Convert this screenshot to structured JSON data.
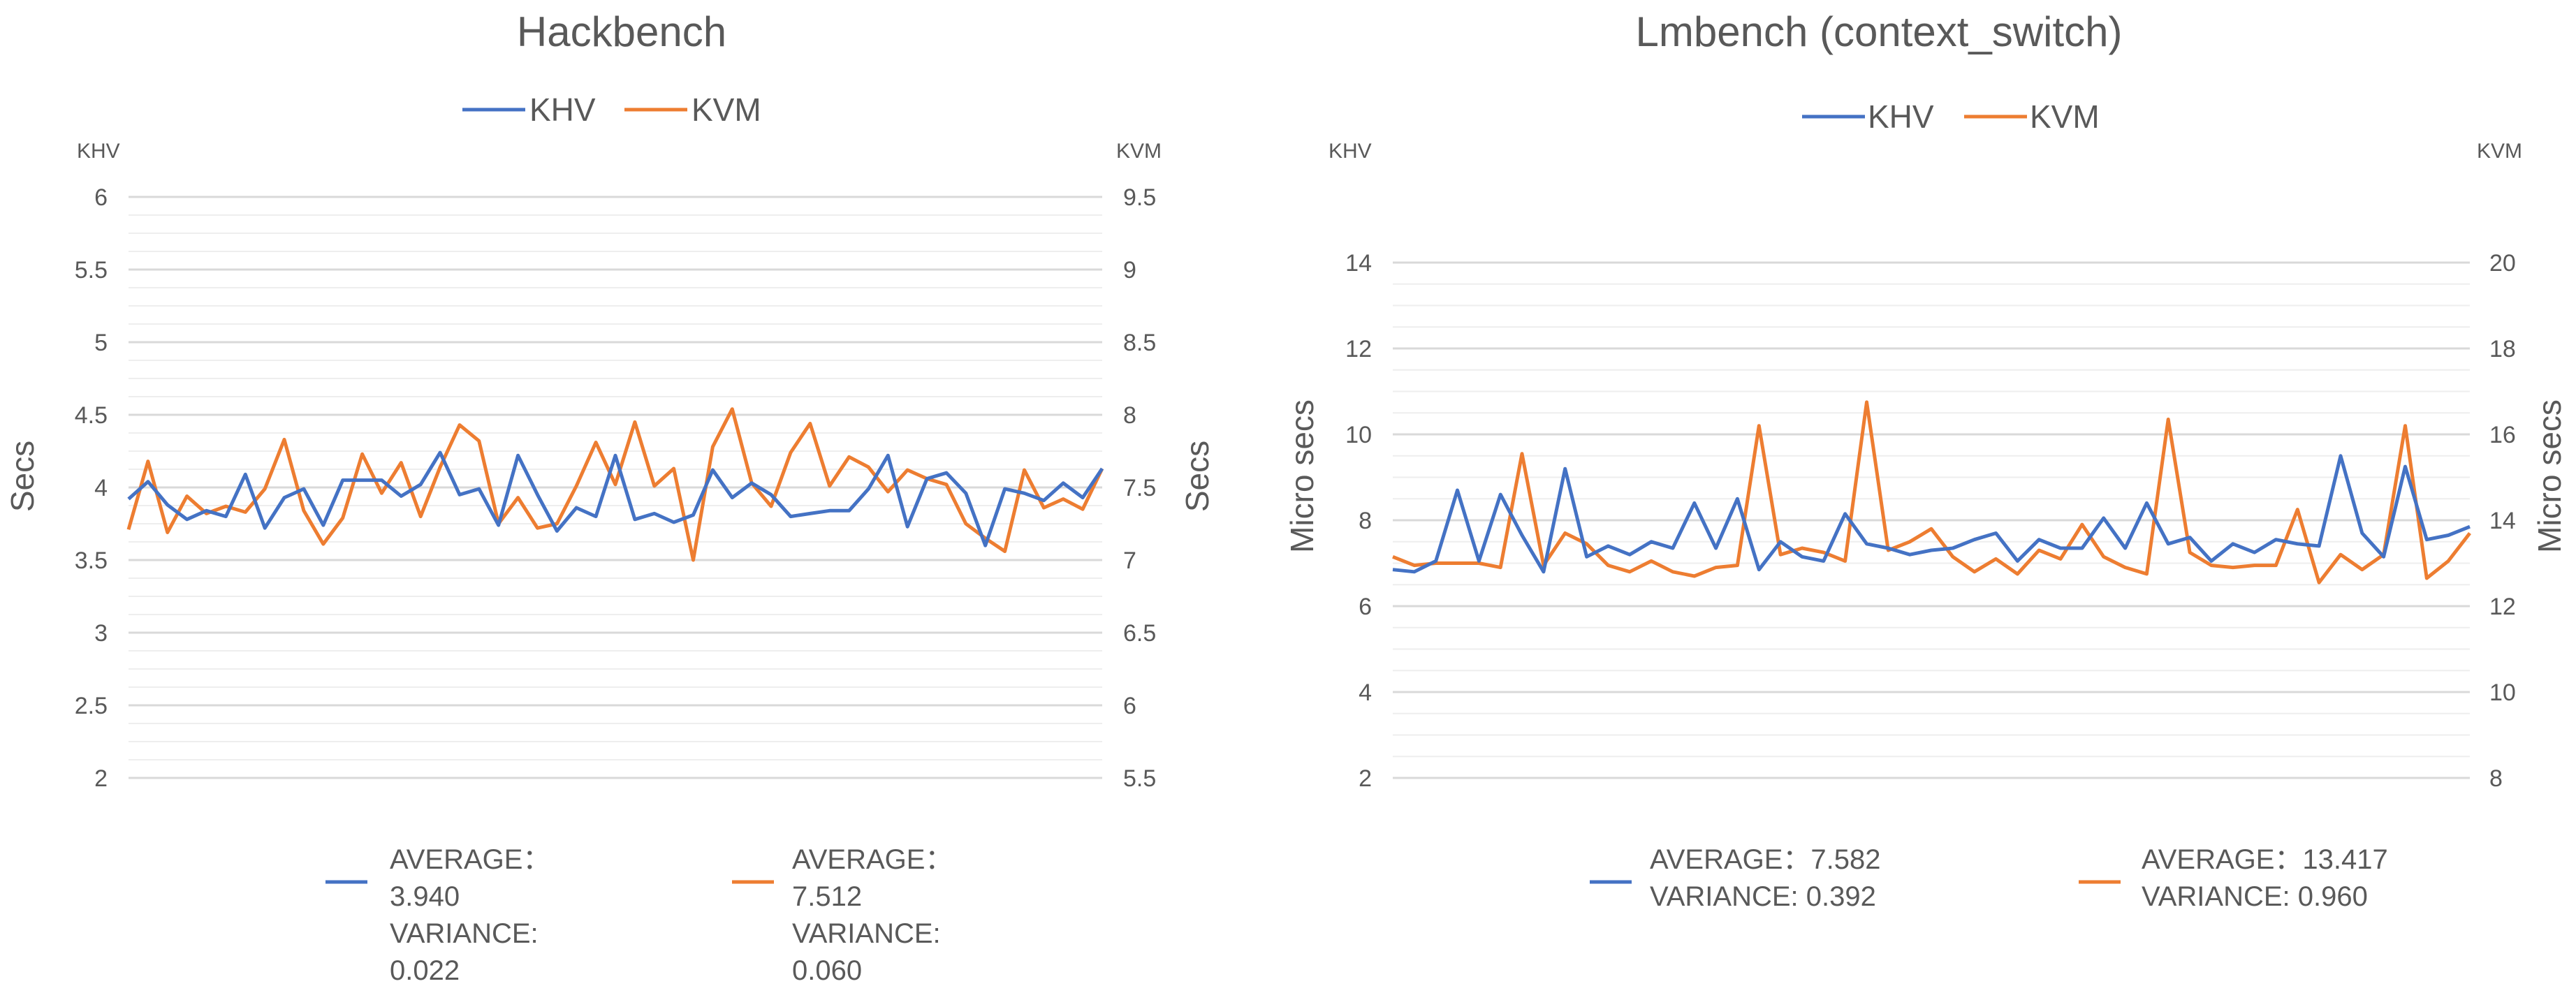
{
  "charts": [
    {
      "title": "Hackbench",
      "legend": [
        "KHV",
        "KVM"
      ],
      "left_axis": {
        "header": "KHV",
        "label": "Secs",
        "ticks": [
          "6",
          "5.5",
          "5",
          "4.5",
          "4",
          "3.5",
          "3",
          "2.5",
          "2"
        ]
      },
      "right_axis": {
        "header": "KVM",
        "label": "Secs",
        "ticks": [
          "9.5",
          "9",
          "8.5",
          "8",
          "7.5",
          "7",
          "6.5",
          "6",
          "5.5"
        ]
      },
      "stats": [
        {
          "lines": [
            "AVERAGE：",
            "3.940",
            "VARIANCE:",
            "0.022"
          ]
        },
        {
          "lines": [
            "AVERAGE：",
            "7.512",
            "VARIANCE:",
            "0.060"
          ]
        }
      ]
    },
    {
      "title": "Lmbench (context_switch)",
      "legend": [
        "KHV",
        "KVM"
      ],
      "left_axis": {
        "header": "KHV",
        "label": "Micro secs",
        "ticks": [
          "14",
          "12",
          "10",
          "8",
          "6",
          "4",
          "2"
        ]
      },
      "right_axis": {
        "header": "KVM",
        "label": "Micro secs",
        "ticks": [
          "20",
          "18",
          "16",
          "14",
          "12",
          "10",
          "8"
        ]
      },
      "stats": [
        {
          "lines": [
            "AVERAGE：7.582",
            "VARIANCE: 0.392"
          ]
        },
        {
          "lines": [
            "AVERAGE：13.417",
            "VARIANCE: 0.960"
          ]
        }
      ]
    }
  ],
  "colors": {
    "khv": "#4472C4",
    "kvm": "#ED7D31",
    "grid_major": "#D9D9D9",
    "grid_minor": "#EEEEEE",
    "text": "#595959"
  },
  "chart_data": [
    {
      "type": "line",
      "title": "Hackbench",
      "xlabel": "",
      "ylabel": "Secs",
      "y2label": "Secs",
      "ylim": [
        2,
        6
      ],
      "y2lim": [
        5.5,
        9.5
      ],
      "series": [
        {
          "name": "KHV",
          "axis": "left",
          "values": [
            3.92,
            4.04,
            3.88,
            3.78,
            3.84,
            3.8,
            4.09,
            3.72,
            3.93,
            3.99,
            3.74,
            4.05,
            4.05,
            4.05,
            3.94,
            4.02,
            4.24,
            3.95,
            3.99,
            3.74,
            4.22,
            3.95,
            3.7,
            3.86,
            3.8,
            4.22,
            3.78,
            3.82,
            3.76,
            3.81,
            4.12,
            3.93,
            4.03,
            3.95,
            3.8,
            3.82,
            3.84,
            3.84,
            3.99,
            4.22,
            3.73,
            4.06,
            4.1,
            3.96,
            3.6,
            3.99,
            3.96,
            3.91,
            4.03,
            3.93,
            4.13
          ]
        },
        {
          "name": "KVM",
          "axis": "right",
          "values": [
            7.21,
            7.68,
            7.19,
            7.44,
            7.32,
            7.37,
            7.33,
            7.49,
            7.83,
            7.34,
            7.11,
            7.29,
            7.73,
            7.46,
            7.67,
            7.3,
            7.64,
            7.93,
            7.82,
            7.25,
            7.43,
            7.22,
            7.25,
            7.51,
            7.81,
            7.52,
            7.95,
            7.51,
            7.63,
            7.0,
            7.78,
            8.04,
            7.53,
            7.37,
            7.74,
            7.94,
            7.51,
            7.71,
            7.64,
            7.47,
            7.62,
            7.56,
            7.52,
            7.25,
            7.15,
            7.06,
            7.62,
            7.36,
            7.42,
            7.35,
            7.63
          ]
        }
      ]
    },
    {
      "type": "line",
      "title": "Lmbench (context_switch)",
      "xlabel": "",
      "ylabel": "Micro secs",
      "y2label": "Micro secs",
      "ylim": [
        2,
        14
      ],
      "y2lim": [
        8,
        20
      ],
      "series": [
        {
          "name": "KHV",
          "axis": "left",
          "values": [
            6.85,
            6.8,
            7.05,
            8.7,
            7.05,
            8.6,
            7.65,
            6.8,
            9.2,
            7.15,
            7.4,
            7.2,
            7.5,
            7.35,
            8.4,
            7.35,
            8.5,
            6.85,
            7.5,
            7.15,
            7.05,
            8.15,
            7.45,
            7.35,
            7.2,
            7.3,
            7.35,
            7.55,
            7.7,
            7.05,
            7.55,
            7.35,
            7.35,
            8.05,
            7.35,
            8.4,
            7.45,
            7.6,
            7.05,
            7.45,
            7.25,
            7.55,
            7.45,
            7.4,
            9.5,
            7.7,
            7.15,
            9.25,
            7.55,
            7.65,
            7.85
          ]
        },
        {
          "name": "KVM",
          "axis": "right",
          "values": [
            13.15,
            12.95,
            13.0,
            13.0,
            13.0,
            12.9,
            15.55,
            12.95,
            13.7,
            13.45,
            12.95,
            12.8,
            13.05,
            12.8,
            12.7,
            12.9,
            12.95,
            16.2,
            13.2,
            13.35,
            13.25,
            13.05,
            16.75,
            13.3,
            13.5,
            13.8,
            13.15,
            12.8,
            13.1,
            12.75,
            13.3,
            13.1,
            13.9,
            13.15,
            12.9,
            12.75,
            16.35,
            13.25,
            12.95,
            12.9,
            12.95,
            12.95,
            14.25,
            12.55,
            13.2,
            12.85,
            13.2,
            16.2,
            12.65,
            13.05,
            13.7
          ]
        }
      ]
    }
  ]
}
